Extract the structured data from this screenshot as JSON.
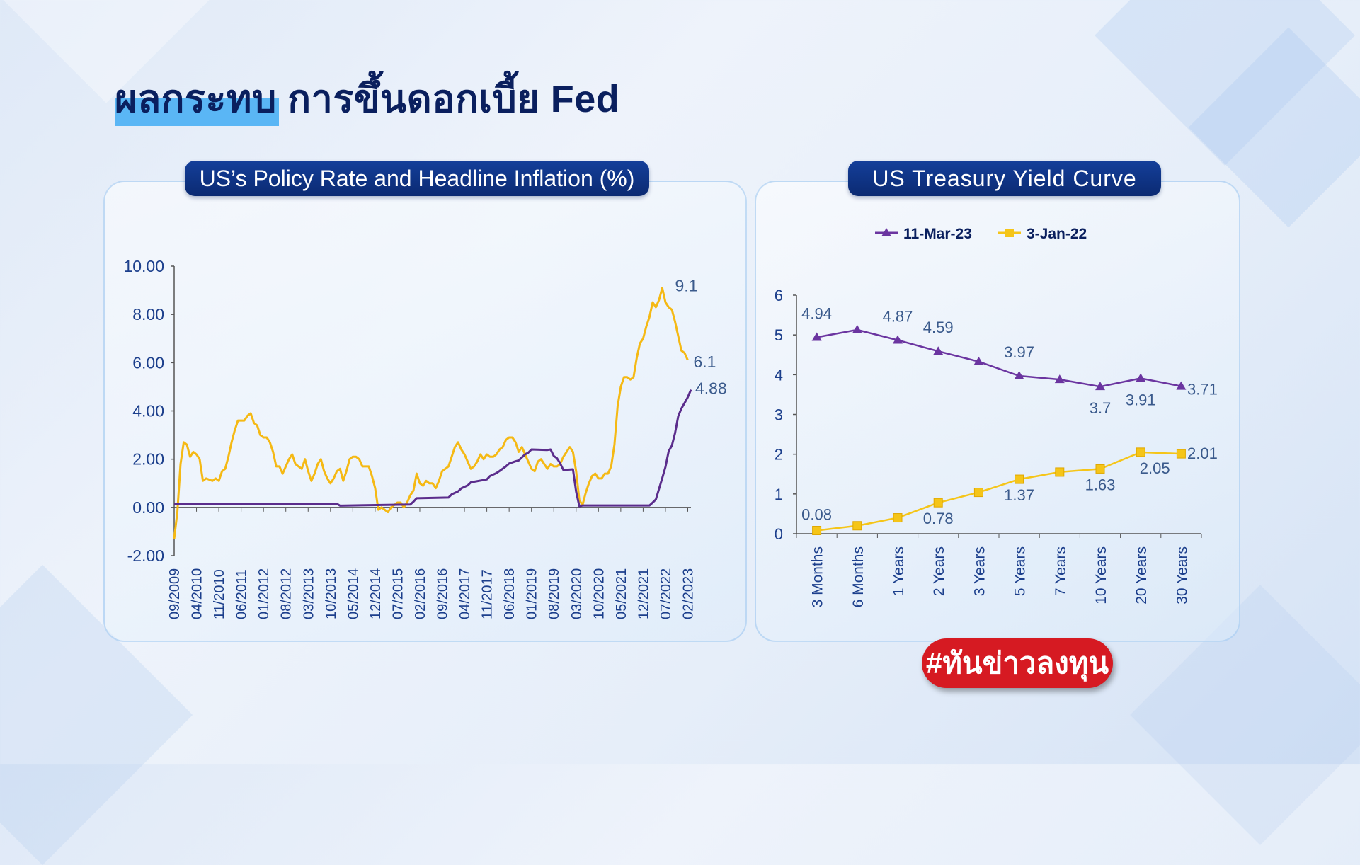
{
  "page": {
    "title_part1": "ผลกระทบ",
    "title_part2": "การขึ้นดอกเบี้ย Fed",
    "hashtag": "#ทันข่าวลงทุน",
    "colors": {
      "yellow": "#f5b914",
      "purple": "#5b2d8c",
      "navy": "#0b2a72",
      "red": "#d61a22",
      "axis_text": "#1c3f8c"
    }
  },
  "chart_data": [
    {
      "type": "line",
      "title": "US’s Policy Rate and Headline Inflation (%)",
      "ylim": [
        -2,
        10
      ],
      "yticks": [
        "10.00",
        "8.00",
        "6.00",
        "4.00",
        "2.00",
        "0.00",
        "-2.00"
      ],
      "ytick_values": [
        10,
        8,
        6,
        4,
        2,
        0,
        -2
      ],
      "x_start": "09/2009",
      "x_end": "03/2023",
      "xticks": [
        "09/2009",
        "04/2010",
        "11/2010",
        "06/2011",
        "01/2012",
        "08/2012",
        "03/2013",
        "10/2013",
        "05/2014",
        "12/2014",
        "07/2015",
        "02/2016",
        "09/2016",
        "04/2017",
        "11/2017",
        "06/2018",
        "01/2019",
        "08/2019",
        "03/2020",
        "10/2020",
        "05/2021",
        "12/2021",
        "07/2022",
        "02/2023"
      ],
      "legend": "none",
      "series": [
        {
          "name": "",
          "color": "#f5b914",
          "label": "9.1",
          "label2": "6.1",
          "points": [
            [
              "09/2009",
              -1.3
            ],
            [
              "10/2009",
              -0.2
            ],
            [
              "11/2009",
              1.8
            ],
            [
              "12/2009",
              2.7
            ],
            [
              "01/2010",
              2.6
            ],
            [
              "02/2010",
              2.1
            ],
            [
              "03/2010",
              2.3
            ],
            [
              "04/2010",
              2.2
            ],
            [
              "05/2010",
              2.0
            ],
            [
              "06/2010",
              1.1
            ],
            [
              "07/2010",
              1.2
            ],
            [
              "08/2010",
              1.15
            ],
            [
              "09/2010",
              1.1
            ],
            [
              "10/2010",
              1.2
            ],
            [
              "11/2010",
              1.1
            ],
            [
              "12/2010",
              1.5
            ],
            [
              "01/2011",
              1.6
            ],
            [
              "02/2011",
              2.1
            ],
            [
              "03/2011",
              2.7
            ],
            [
              "04/2011",
              3.2
            ],
            [
              "05/2011",
              3.6
            ],
            [
              "06/2011",
              3.6
            ],
            [
              "07/2011",
              3.6
            ],
            [
              "08/2011",
              3.8
            ],
            [
              "09/2011",
              3.9
            ],
            [
              "10/2011",
              3.5
            ],
            [
              "11/2011",
              3.4
            ],
            [
              "12/2011",
              3.0
            ],
            [
              "01/2012",
              2.9
            ],
            [
              "02/2012",
              2.9
            ],
            [
              "03/2012",
              2.7
            ],
            [
              "04/2012",
              2.3
            ],
            [
              "05/2012",
              1.7
            ],
            [
              "06/2012",
              1.7
            ],
            [
              "07/2012",
              1.4
            ],
            [
              "08/2012",
              1.7
            ],
            [
              "09/2012",
              2.0
            ],
            [
              "10/2012",
              2.2
            ],
            [
              "11/2012",
              1.8
            ],
            [
              "12/2012",
              1.7
            ],
            [
              "01/2013",
              1.6
            ],
            [
              "02/2013",
              2.0
            ],
            [
              "03/2013",
              1.5
            ],
            [
              "04/2013",
              1.1
            ],
            [
              "05/2013",
              1.4
            ],
            [
              "06/2013",
              1.8
            ],
            [
              "07/2013",
              2.0
            ],
            [
              "08/2013",
              1.5
            ],
            [
              "09/2013",
              1.2
            ],
            [
              "10/2013",
              1.0
            ],
            [
              "11/2013",
              1.2
            ],
            [
              "12/2013",
              1.5
            ],
            [
              "01/2014",
              1.6
            ],
            [
              "02/2014",
              1.1
            ],
            [
              "03/2014",
              1.5
            ],
            [
              "04/2014",
              2.0
            ],
            [
              "05/2014",
              2.1
            ],
            [
              "06/2014",
              2.1
            ],
            [
              "07/2014",
              2.0
            ],
            [
              "08/2014",
              1.7
            ],
            [
              "09/2014",
              1.7
            ],
            [
              "10/2014",
              1.7
            ],
            [
              "11/2014",
              1.3
            ],
            [
              "12/2014",
              0.8
            ],
            [
              "01/2015",
              -0.1
            ],
            [
              "02/2015",
              0.0
            ],
            [
              "03/2015",
              -0.1
            ],
            [
              "04/2015",
              -0.2
            ],
            [
              "05/2015",
              0.0
            ],
            [
              "06/2015",
              0.1
            ],
            [
              "07/2015",
              0.2
            ],
            [
              "08/2015",
              0.2
            ],
            [
              "09/2015",
              0.0
            ],
            [
              "10/2015",
              0.2
            ],
            [
              "11/2015",
              0.5
            ],
            [
              "12/2015",
              0.7
            ],
            [
              "01/2016",
              1.4
            ],
            [
              "02/2016",
              1.0
            ],
            [
              "03/2016",
              0.9
            ],
            [
              "04/2016",
              1.1
            ],
            [
              "05/2016",
              1.0
            ],
            [
              "06/2016",
              1.0
            ],
            [
              "07/2016",
              0.8
            ],
            [
              "08/2016",
              1.1
            ],
            [
              "09/2016",
              1.5
            ],
            [
              "10/2016",
              1.6
            ],
            [
              "11/2016",
              1.7
            ],
            [
              "12/2016",
              2.1
            ],
            [
              "01/2017",
              2.5
            ],
            [
              "02/2017",
              2.7
            ],
            [
              "03/2017",
              2.4
            ],
            [
              "04/2017",
              2.2
            ],
            [
              "05/2017",
              1.9
            ],
            [
              "06/2017",
              1.6
            ],
            [
              "07/2017",
              1.7
            ],
            [
              "08/2017",
              1.9
            ],
            [
              "09/2017",
              2.2
            ],
            [
              "10/2017",
              2.0
            ],
            [
              "11/2017",
              2.2
            ],
            [
              "12/2017",
              2.1
            ],
            [
              "01/2018",
              2.1
            ],
            [
              "02/2018",
              2.2
            ],
            [
              "03/2018",
              2.4
            ],
            [
              "04/2018",
              2.5
            ],
            [
              "05/2018",
              2.8
            ],
            [
              "06/2018",
              2.9
            ],
            [
              "07/2018",
              2.9
            ],
            [
              "08/2018",
              2.7
            ],
            [
              "09/2018",
              2.3
            ],
            [
              "10/2018",
              2.5
            ],
            [
              "11/2018",
              2.2
            ],
            [
              "12/2018",
              1.9
            ],
            [
              "01/2019",
              1.6
            ],
            [
              "02/2019",
              1.5
            ],
            [
              "03/2019",
              1.9
            ],
            [
              "04/2019",
              2.0
            ],
            [
              "05/2019",
              1.8
            ],
            [
              "06/2019",
              1.6
            ],
            [
              "07/2019",
              1.8
            ],
            [
              "08/2019",
              1.7
            ],
            [
              "09/2019",
              1.7
            ],
            [
              "10/2019",
              1.8
            ],
            [
              "11/2019",
              2.1
            ],
            [
              "12/2019",
              2.3
            ],
            [
              "01/2020",
              2.5
            ],
            [
              "02/2020",
              2.3
            ],
            [
              "03/2020",
              1.5
            ],
            [
              "04/2020",
              0.3
            ],
            [
              "05/2020",
              0.1
            ],
            [
              "06/2020",
              0.6
            ],
            [
              "07/2020",
              1.0
            ],
            [
              "08/2020",
              1.3
            ],
            [
              "09/2020",
              1.4
            ],
            [
              "10/2020",
              1.2
            ],
            [
              "11/2020",
              1.2
            ],
            [
              "12/2020",
              1.4
            ],
            [
              "01/2021",
              1.4
            ],
            [
              "02/2021",
              1.7
            ],
            [
              "03/2021",
              2.6
            ],
            [
              "04/2021",
              4.2
            ],
            [
              "05/2021",
              5.0
            ],
            [
              "06/2021",
              5.4
            ],
            [
              "07/2021",
              5.4
            ],
            [
              "08/2021",
              5.3
            ],
            [
              "09/2021",
              5.4
            ],
            [
              "10/2021",
              6.2
            ],
            [
              "11/2021",
              6.8
            ],
            [
              "12/2021",
              7.0
            ],
            [
              "01/2022",
              7.5
            ],
            [
              "02/2022",
              7.9
            ],
            [
              "03/2022",
              8.5
            ],
            [
              "04/2022",
              8.3
            ],
            [
              "05/2022",
              8.6
            ],
            [
              "06/2022",
              9.1
            ],
            [
              "07/2022",
              8.5
            ],
            [
              "08/2022",
              8.3
            ],
            [
              "09/2022",
              8.2
            ],
            [
              "10/2022",
              7.7
            ],
            [
              "11/2022",
              7.1
            ],
            [
              "12/2022",
              6.5
            ],
            [
              "01/2023",
              6.4
            ],
            [
              "02/2023",
              6.1
            ]
          ]
        },
        {
          "name": "",
          "color": "#5b2d8c",
          "label": "4.88",
          "points": [
            [
              "09/2009",
              0.15
            ],
            [
              "12/2013",
              0.15
            ],
            [
              "01/2014",
              0.07
            ],
            [
              "11/2015",
              0.12
            ],
            [
              "12/2015",
              0.24
            ],
            [
              "01/2016",
              0.38
            ],
            [
              "11/2016",
              0.41
            ],
            [
              "12/2016",
              0.54
            ],
            [
              "02/2017",
              0.66
            ],
            [
              "03/2017",
              0.79
            ],
            [
              "05/2017",
              0.91
            ],
            [
              "06/2017",
              1.04
            ],
            [
              "11/2017",
              1.16
            ],
            [
              "12/2017",
              1.3
            ],
            [
              "02/2018",
              1.42
            ],
            [
              "03/2018",
              1.51
            ],
            [
              "05/2018",
              1.7
            ],
            [
              "06/2018",
              1.82
            ],
            [
              "08/2018",
              1.91
            ],
            [
              "09/2018",
              1.95
            ],
            [
              "11/2018",
              2.2
            ],
            [
              "12/2018",
              2.27
            ],
            [
              "01/2019",
              2.4
            ],
            [
              "06/2019",
              2.38
            ],
            [
              "07/2019",
              2.4
            ],
            [
              "08/2019",
              2.13
            ],
            [
              "09/2019",
              2.04
            ],
            [
              "10/2019",
              1.83
            ],
            [
              "11/2019",
              1.55
            ],
            [
              "02/2020",
              1.58
            ],
            [
              "03/2020",
              0.65
            ],
            [
              "04/2020",
              0.05
            ],
            [
              "05/2020",
              0.08
            ],
            [
              "02/2022",
              0.08
            ],
            [
              "03/2022",
              0.2
            ],
            [
              "04/2022",
              0.33
            ],
            [
              "05/2022",
              0.77
            ],
            [
              "06/2022",
              1.21
            ],
            [
              "07/2022",
              1.68
            ],
            [
              "08/2022",
              2.33
            ],
            [
              "09/2022",
              2.56
            ],
            [
              "10/2022",
              3.08
            ],
            [
              "11/2022",
              3.78
            ],
            [
              "12/2022",
              4.1
            ],
            [
              "01/2023",
              4.33
            ],
            [
              "02/2023",
              4.57
            ],
            [
              "03/2023",
              4.88
            ]
          ]
        }
      ]
    },
    {
      "type": "line",
      "title": "US Treasury Yield  Curve",
      "categories": [
        "3 Months",
        "6 Months",
        "1 Years",
        "2 Years",
        "3 Years",
        "5 Years",
        "7 Years",
        "10 Years",
        "20 Years",
        "30 Years"
      ],
      "ylim": [
        0,
        6
      ],
      "yticks": [
        "6",
        "5",
        "4",
        "3",
        "2",
        "1",
        "0"
      ],
      "legend": "top-center",
      "series": [
        {
          "name": "11-Mar-23",
          "color": "#6b35a0",
          "marker": "triangle",
          "values": [
            4.94,
            5.13,
            4.87,
            4.59,
            4.33,
            3.97,
            3.88,
            3.7,
            3.91,
            3.71
          ],
          "labels": [
            "4.94",
            "",
            "4.87",
            "4.59",
            "",
            "3.97",
            "",
            "3.7",
            "3.91",
            "3.71"
          ]
        },
        {
          "name": "3-Jan-22",
          "color": "#f5c518",
          "marker": "square",
          "values": [
            0.08,
            0.2,
            0.4,
            0.78,
            1.04,
            1.37,
            1.55,
            1.63,
            2.05,
            2.01
          ],
          "labels": [
            "0.08",
            "",
            "",
            "0.78",
            "",
            "1.37",
            "",
            "1.63",
            "2.05",
            "2.01"
          ]
        }
      ]
    }
  ]
}
